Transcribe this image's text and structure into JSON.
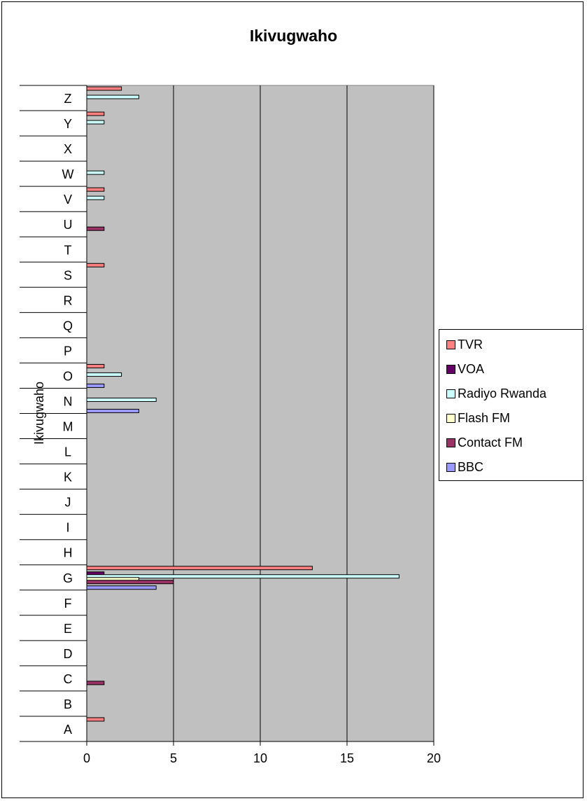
{
  "chart_data": {
    "type": "bar",
    "orientation": "horizontal",
    "title": "Ikivugwaho",
    "ylabel": "Ikivugwaho",
    "xlabel": "",
    "xlim": [
      0,
      20
    ],
    "xticks": [
      0,
      5,
      10,
      15,
      20
    ],
    "grid": true,
    "legend_position": "right",
    "categories": [
      "A",
      "B",
      "C",
      "D",
      "E",
      "F",
      "G",
      "H",
      "I",
      "J",
      "K",
      "L",
      "M",
      "N",
      "O",
      "P",
      "Q",
      "R",
      "S",
      "T",
      "U",
      "V",
      "W",
      "X",
      "Y",
      "Z"
    ],
    "series": [
      {
        "name": "TVR",
        "color": "#ff8080",
        "values": [
          1,
          0,
          0,
          0,
          0,
          0,
          13,
          0,
          0,
          0,
          0,
          0,
          0,
          0,
          1,
          0,
          0,
          0,
          1,
          0,
          0,
          1,
          0,
          0,
          1,
          2
        ]
      },
      {
        "name": "VOA",
        "color": "#660066",
        "values": [
          0,
          0,
          0,
          0,
          0,
          0,
          1,
          0,
          0,
          0,
          0,
          0,
          0,
          0,
          0,
          0,
          0,
          0,
          0,
          0,
          0,
          0,
          0,
          0,
          0,
          0
        ]
      },
      {
        "name": "Radiyo Rwanda",
        "color": "#ccffff",
        "values": [
          0,
          0,
          0,
          0,
          0,
          0,
          18,
          0,
          0,
          0,
          0,
          0,
          0,
          4,
          2,
          0,
          0,
          0,
          0,
          0,
          0,
          1,
          1,
          0,
          1,
          3
        ]
      },
      {
        "name": "Flash FM",
        "color": "#ffffcc",
        "values": [
          0,
          0,
          0,
          0,
          0,
          0,
          3,
          0,
          0,
          0,
          0,
          0,
          0,
          0,
          0,
          0,
          0,
          0,
          0,
          0,
          0,
          0,
          0,
          0,
          0,
          0
        ]
      },
      {
        "name": "Contact FM",
        "color": "#993366",
        "values": [
          0,
          0,
          1,
          0,
          0,
          0,
          5,
          0,
          0,
          0,
          0,
          0,
          0,
          0,
          0,
          0,
          0,
          0,
          0,
          0,
          1,
          0,
          0,
          0,
          0,
          0
        ]
      },
      {
        "name": "BBC",
        "color": "#9999ff",
        "values": [
          0,
          0,
          0,
          0,
          0,
          0,
          4,
          0,
          0,
          0,
          0,
          0,
          0,
          3,
          1,
          0,
          0,
          0,
          0,
          0,
          0,
          0,
          0,
          0,
          0,
          0
        ]
      }
    ]
  }
}
